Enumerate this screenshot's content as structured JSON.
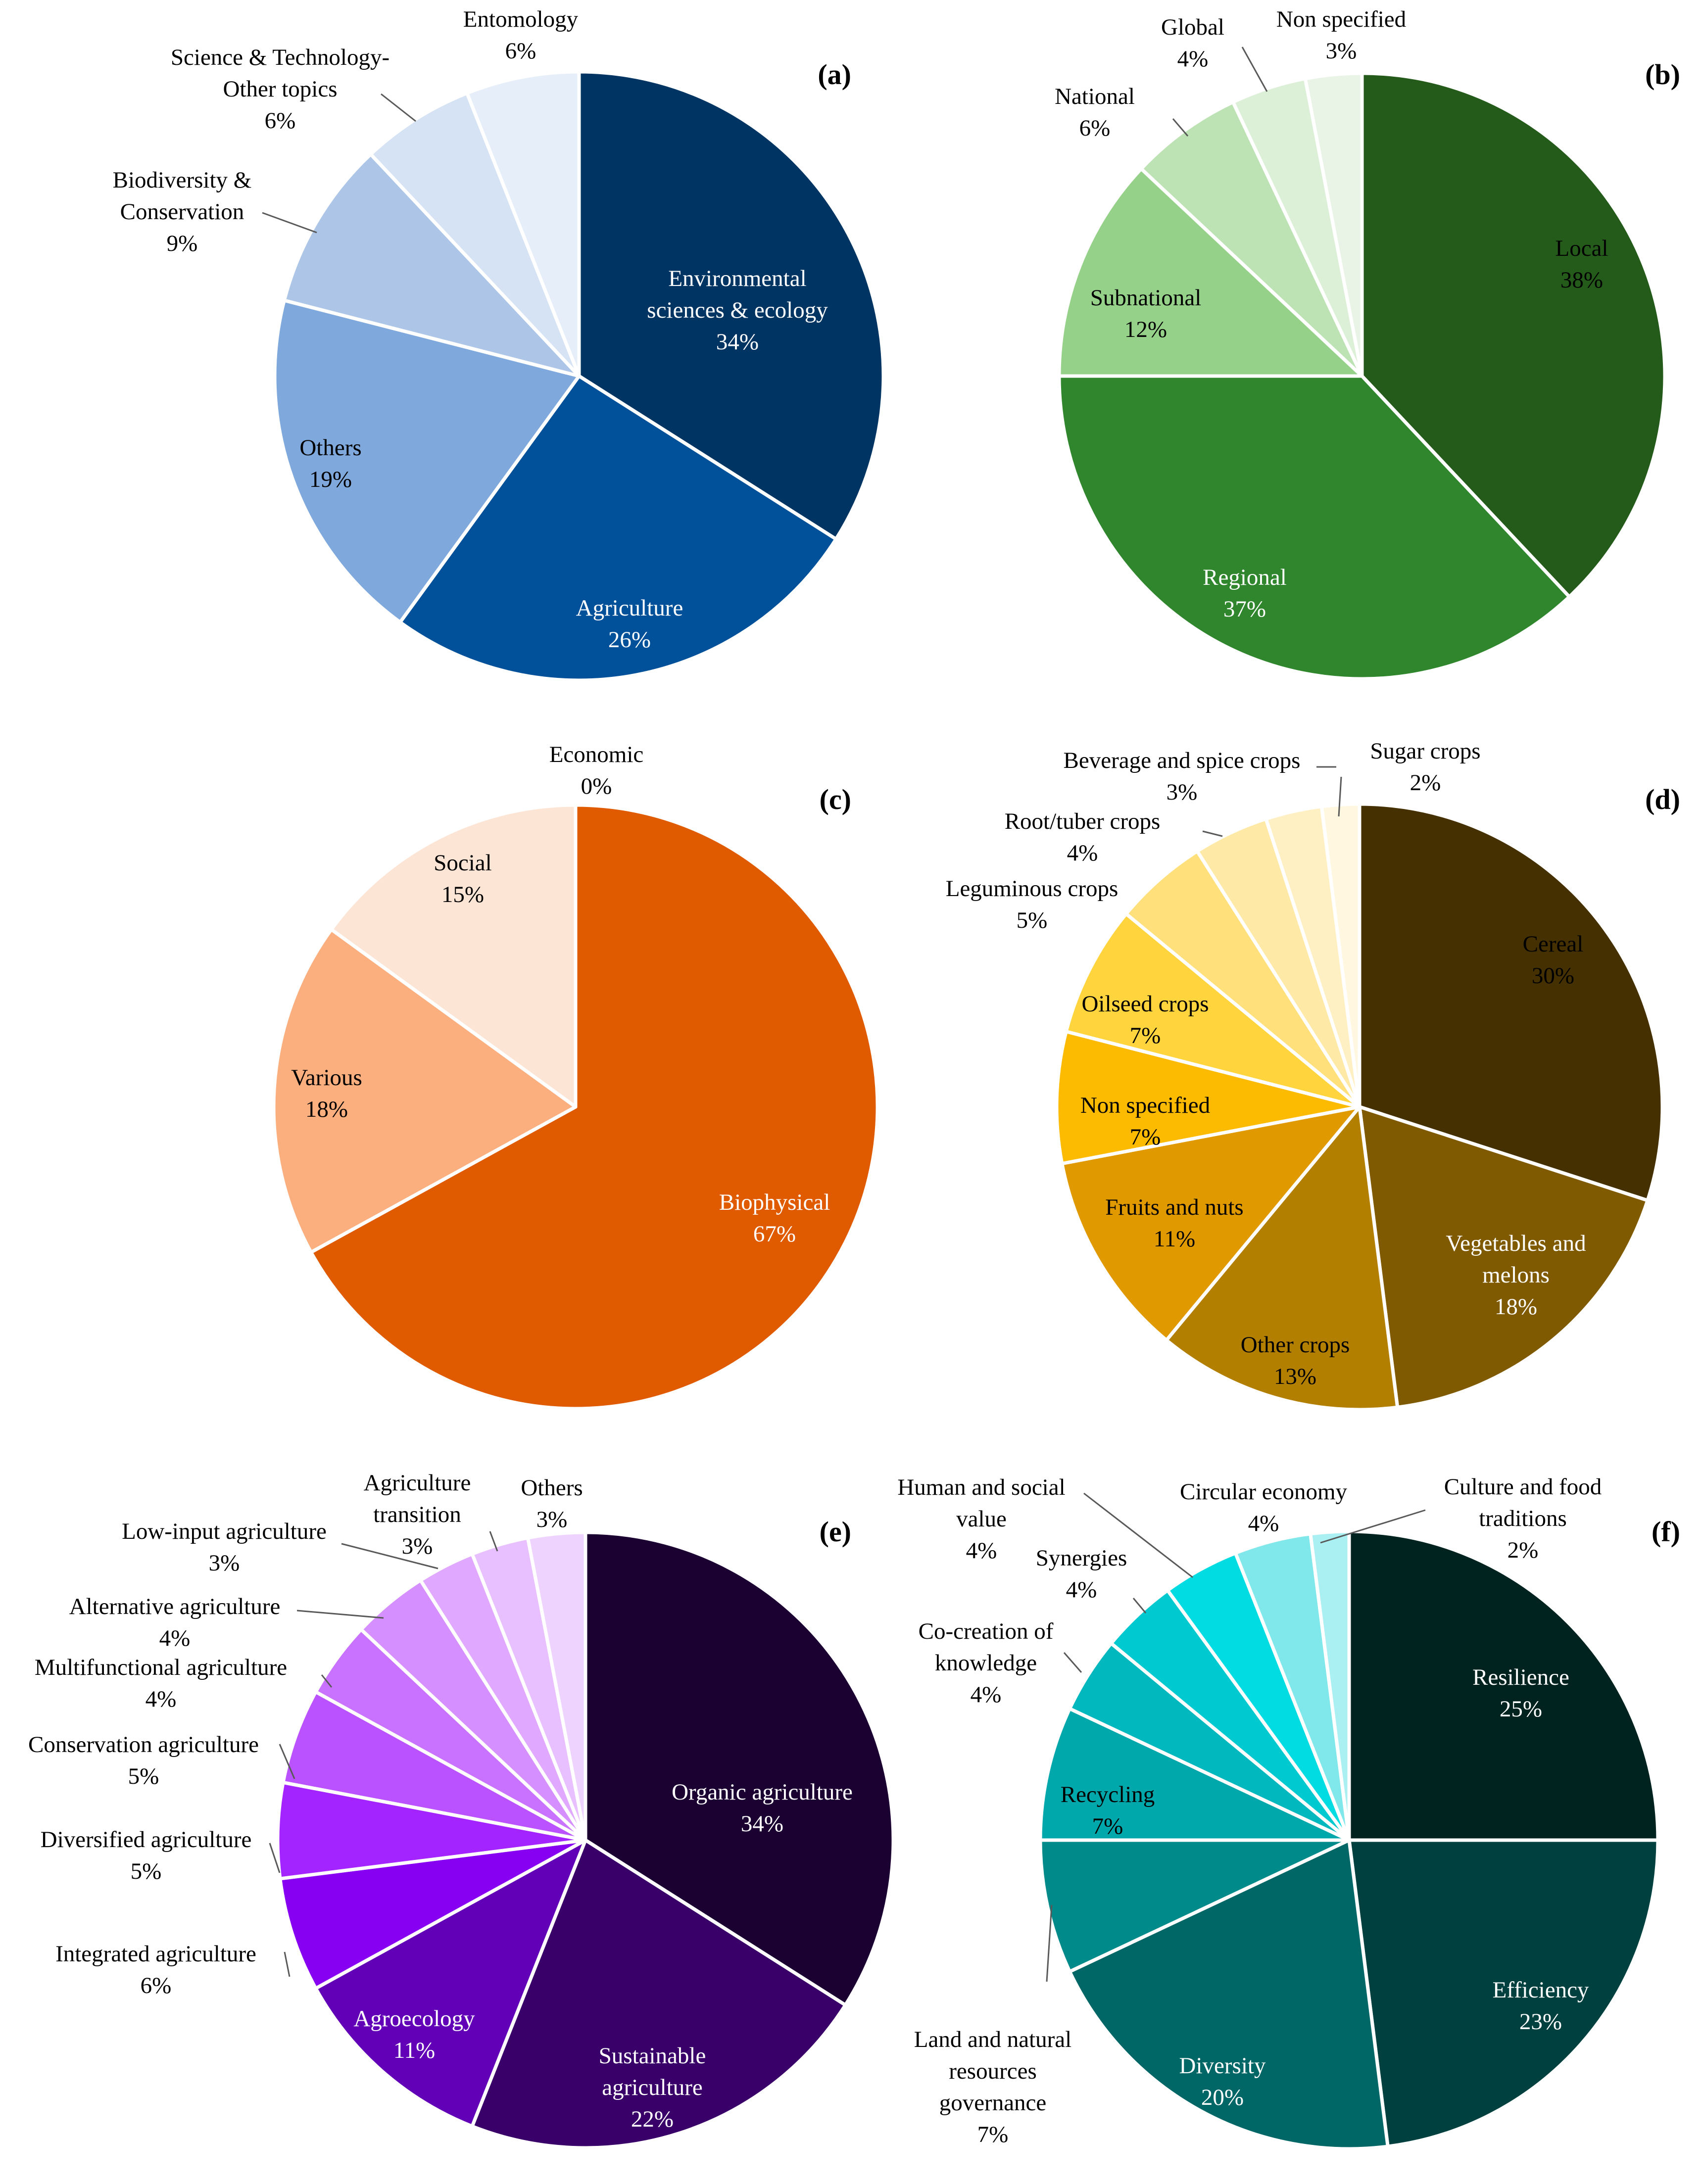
{
  "chart_data": [
    {
      "type": "pie",
      "panel_label": "(a)",
      "slices": [
        {
          "label": "Environmental sciences & ecology",
          "lines": [
            "Environmental",
            "sciences & ecology"
          ],
          "pct_label": "34%",
          "value": 34,
          "color": "#003462"
        },
        {
          "label": "Agriculture",
          "lines": [
            "Agriculture"
          ],
          "pct_label": "26%",
          "value": 26,
          "color": "#00519A"
        },
        {
          "label": "Others",
          "lines": [
            "Others"
          ],
          "pct_label": "19%",
          "value": 19,
          "color": "#7FA8DD"
        },
        {
          "label": "Biodiversity & Conservation",
          "lines": [
            "Biodiversity &",
            "Conservation"
          ],
          "pct_label": "9%",
          "value": 9,
          "color": "#ADC6E8"
        },
        {
          "label": "Science & Technology-Other topics",
          "lines": [
            "Science & Technology-",
            "Other topics"
          ],
          "pct_label": "6%",
          "value": 6,
          "color": "#D6E3F4"
        },
        {
          "label": "Entomology",
          "lines": [
            "Entomology"
          ],
          "pct_label": "6%",
          "value": 6,
          "color": "#E6EFF9"
        }
      ]
    },
    {
      "type": "pie",
      "panel_label": "(b)",
      "slices": [
        {
          "label": "Local",
          "lines": [
            "Local"
          ],
          "pct_label": "38%",
          "value": 38,
          "color": "#245A1A"
        },
        {
          "label": "Regional",
          "lines": [
            "Regional"
          ],
          "pct_label": "37%",
          "value": 37,
          "color": "#2F862C"
        },
        {
          "label": "Subnational",
          "lines": [
            "Subnational"
          ],
          "pct_label": "12%",
          "value": 12,
          "color": "#96D18A"
        },
        {
          "label": "National",
          "lines": [
            "National"
          ],
          "pct_label": "6%",
          "value": 6,
          "color": "#BDE2B4"
        },
        {
          "label": "Global",
          "lines": [
            "Global"
          ],
          "pct_label": "4%",
          "value": 4,
          "color": "#DCEFD7"
        },
        {
          "label": "Non specified",
          "lines": [
            "Non specified"
          ],
          "pct_label": "3%",
          "value": 3,
          "color": "#EAF4E6"
        }
      ]
    },
    {
      "type": "pie",
      "panel_label": "(c)",
      "slices": [
        {
          "label": "Biophysical",
          "lines": [
            "Biophysical"
          ],
          "pct_label": "67%",
          "value": 67,
          "color": "#E05A00"
        },
        {
          "label": "Various",
          "lines": [
            "Various"
          ],
          "pct_label": "18%",
          "value": 18,
          "color": "#FCAF7E"
        },
        {
          "label": "Social",
          "lines": [
            "Social"
          ],
          "pct_label": "15%",
          "value": 15,
          "color": "#FDE5D6"
        },
        {
          "label": "Economic",
          "lines": [
            "Economic"
          ],
          "pct_label": "0%",
          "value": 0,
          "color": "#FFF3EA"
        }
      ]
    },
    {
      "type": "pie",
      "panel_label": "(d)",
      "slices": [
        {
          "label": "Cereal",
          "lines": [
            "Cereal"
          ],
          "pct_label": "30%",
          "value": 30,
          "color": "#443000"
        },
        {
          "label": "Vegetables and melons",
          "lines": [
            "Vegetables and",
            "melons"
          ],
          "pct_label": "18%",
          "value": 18,
          "color": "#7F5A00"
        },
        {
          "label": "Other crops",
          "lines": [
            "Other crops"
          ],
          "pct_label": "13%",
          "value": 13,
          "color": "#B27F00"
        },
        {
          "label": "Fruits and nuts",
          "lines": [
            "Fruits and nuts"
          ],
          "pct_label": "11%",
          "value": 11,
          "color": "#E09A00"
        },
        {
          "label": "Non specified",
          "lines": [
            "Non specified"
          ],
          "pct_label": "7%",
          "value": 7,
          "color": "#FCBB00"
        },
        {
          "label": "Oilseed crops",
          "lines": [
            "Oilseed crops"
          ],
          "pct_label": "7%",
          "value": 7,
          "color": "#FFD43C"
        },
        {
          "label": "Leguminous crops",
          "lines": [
            "Leguminous crops"
          ],
          "pct_label": "5%",
          "value": 5,
          "color": "#FFE07A"
        },
        {
          "label": "Root/tuber crops",
          "lines": [
            "Root/tuber crops"
          ],
          "pct_label": "4%",
          "value": 4,
          "color": "#FFE9A6"
        },
        {
          "label": "Beverage and spice crops",
          "lines": [
            "Beverage and spice crops"
          ],
          "pct_label": "3%",
          "value": 3,
          "color": "#FFF0C4"
        },
        {
          "label": "Sugar crops",
          "lines": [
            "Sugar crops"
          ],
          "pct_label": "2%",
          "value": 2,
          "color": "#FFF7E0"
        }
      ]
    },
    {
      "type": "pie",
      "panel_label": "(e)",
      "slices": [
        {
          "label": "Organic agriculture",
          "lines": [
            "Organic agriculture"
          ],
          "pct_label": "34%",
          "value": 34,
          "color": "#1B0032"
        },
        {
          "label": "Sustainable agriculture",
          "lines": [
            "Sustainable",
            "agriculture"
          ],
          "pct_label": "22%",
          "value": 22,
          "color": "#3A0069"
        },
        {
          "label": "Agroecology",
          "lines": [
            "Agroecology"
          ],
          "pct_label": "11%",
          "value": 11,
          "color": "#6200B8"
        },
        {
          "label": "Integrated agriculture",
          "lines": [
            "Integrated agriculture"
          ],
          "pct_label": "6%",
          "value": 6,
          "color": "#8700F2"
        },
        {
          "label": "Diversified agriculture",
          "lines": [
            "Diversified agriculture"
          ],
          "pct_label": "5%",
          "value": 5,
          "color": "#A324FF"
        },
        {
          "label": "Conservation agriculture",
          "lines": [
            "Conservation agriculture"
          ],
          "pct_label": "5%",
          "value": 5,
          "color": "#BA52FF"
        },
        {
          "label": "Multifunctional agriculture",
          "lines": [
            "Multifunctional agriculture"
          ],
          "pct_label": "4%",
          "value": 4,
          "color": "#C972FF"
        },
        {
          "label": "Alternative agriculture",
          "lines": [
            "Alternative agriculture"
          ],
          "pct_label": "4%",
          "value": 4,
          "color": "#D68FFF"
        },
        {
          "label": "Low-input agriculture",
          "lines": [
            "Low-input agriculture"
          ],
          "pct_label": "3%",
          "value": 3,
          "color": "#E0A9FF"
        },
        {
          "label": "Agriculture transition",
          "lines": [
            "Agriculture",
            "transition"
          ],
          "pct_label": "3%",
          "value": 3,
          "color": "#E8BFFF"
        },
        {
          "label": "Others",
          "lines": [
            "Others"
          ],
          "pct_label": "3%",
          "value": 3,
          "color": "#EFD3FF"
        }
      ]
    },
    {
      "type": "pie",
      "panel_label": "(f)",
      "slices": [
        {
          "label": "Resilience",
          "lines": [
            "Resilience"
          ],
          "pct_label": "25%",
          "value": 25,
          "color": "#002320"
        },
        {
          "label": "Efficiency",
          "lines": [
            "Efficiency"
          ],
          "pct_label": "23%",
          "value": 23,
          "color": "#004140"
        },
        {
          "label": "Diversity",
          "lines": [
            "Diversity"
          ],
          "pct_label": "20%",
          "value": 20,
          "color": "#006666"
        },
        {
          "label": "Land and natural resources governance",
          "lines": [
            "Land and natural",
            "resources",
            "governance"
          ],
          "pct_label": "7%",
          "value": 7,
          "color": "#008A8A"
        },
        {
          "label": "Recycling",
          "lines": [
            "Recycling"
          ],
          "pct_label": "7%",
          "value": 7,
          "color": "#00A8AC"
        },
        {
          "label": "Co-creation of knowledge",
          "lines": [
            "Co-creation  of",
            "knowledge"
          ],
          "pct_label": "4%",
          "value": 4,
          "color": "#00B8BE"
        },
        {
          "label": "Synergies",
          "lines": [
            "Synergies"
          ],
          "pct_label": "4%",
          "value": 4,
          "color": "#00C9CF"
        },
        {
          "label": "Human and social value",
          "lines": [
            "Human and social",
            "value"
          ],
          "pct_label": "4%",
          "value": 4,
          "color": "#00DCE2"
        },
        {
          "label": "Circular economy",
          "lines": [
            "Circular  economy"
          ],
          "pct_label": "4%",
          "value": 4,
          "color": "#80E8EB"
        },
        {
          "label": "Culture and food traditions",
          "lines": [
            "Culture  and  food",
            "traditions"
          ],
          "pct_label": "2%",
          "value": 2,
          "color": "#AAF0F2"
        }
      ]
    }
  ]
}
